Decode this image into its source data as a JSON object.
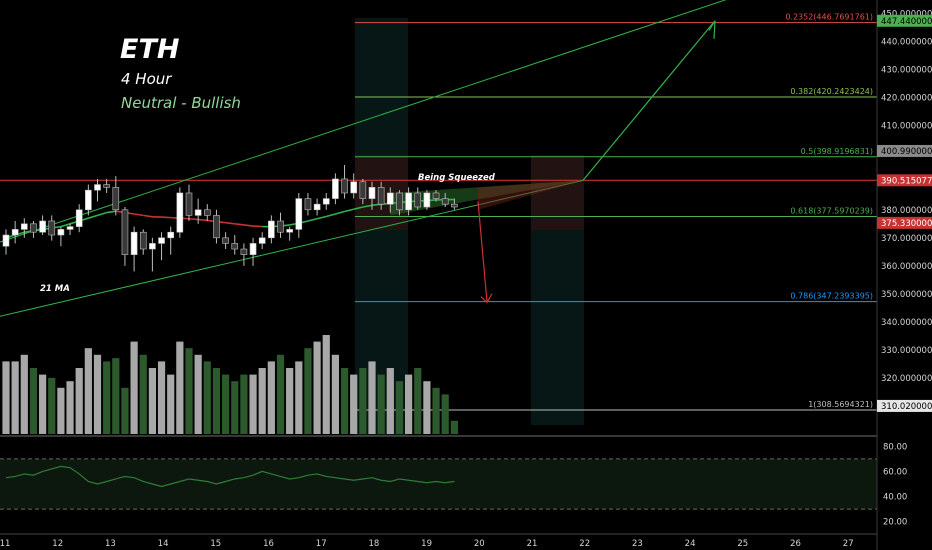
{
  "header": {
    "title": "ETH",
    "timeframe": "4 Hour",
    "bias": "Neutral - Bullish"
  },
  "annotations": {
    "ma_label": "21 MA",
    "squeeze_label": "Being Squeezed"
  },
  "colors": {
    "background": "#000000",
    "bull_candle": "#ffffff",
    "bear_candle": "#3a3a3a",
    "volume_bull": "#a8a8a8",
    "volume_bear": "#2d5a2d",
    "trendline": "#2fb34a",
    "ma_bull": "#2fb34a",
    "ma_bear": "#c83232",
    "resistance": "#c83232",
    "target_arrow": "#2fb34a",
    "drop_arrow": "#c83232"
  },
  "chart_data": {
    "type": "candlestick",
    "x_ticks": [
      "11",
      "12",
      "13",
      "14",
      "15",
      "16",
      "17",
      "18",
      "19",
      "20",
      "21",
      "22",
      "23",
      "24",
      "25",
      "26",
      "27"
    ],
    "price_axis": {
      "ticks": [
        "310.0000000",
        "320.0000000",
        "330.0000000",
        "340.0000000",
        "350.0000000",
        "360.0000000",
        "370.0000000",
        "380.0000000",
        "390.0000000",
        "400.0000000",
        "410.0000000",
        "420.0000000",
        "430.0000000",
        "440.0000000",
        "450.0000000"
      ],
      "tick_values": [
        310,
        320,
        330,
        340,
        350,
        360,
        370,
        380,
        390,
        400,
        410,
        420,
        430,
        440,
        450
      ],
      "ylim": [
        300,
        452
      ]
    },
    "price_tags": [
      {
        "label": "447.4400000",
        "value": 447.44,
        "bg": "#4caf50",
        "fg": "#000000"
      },
      {
        "label": "400.9900000",
        "value": 400.99,
        "bg": "#8a8a8a",
        "fg": "#000000"
      },
      {
        "label": "390.5150775",
        "value": 390.5150775,
        "bg": "#c83232",
        "fg": "#ffffff"
      },
      {
        "label": "375.3300000",
        "value": 375.33,
        "bg": "#c83232",
        "fg": "#ffffff"
      },
      {
        "label": "310.0200000",
        "value": 310.02,
        "bg": "#e6e6e6",
        "fg": "#000000"
      }
    ],
    "fib_levels": [
      {
        "label": "0.2352(446.7691761)",
        "value": 446.7691761,
        "color": "#e05050"
      },
      {
        "label": "0.382(420.2423424)",
        "value": 420.2423424,
        "color": "#8bc34a"
      },
      {
        "label": "0.5(398.9196831)",
        "value": 398.9196831,
        "color": "#4caf50"
      },
      {
        "label": "0.618(377.5970239)",
        "value": 377.5970239,
        "color": "#4caf50"
      },
      {
        "label": "0.786(347.2393395)",
        "value": 347.2393395,
        "color": "#2196f3"
      },
      {
        "label": "1(308.5694321)",
        "value": 308.5694321,
        "color": "#bdbdbd"
      }
    ],
    "resistance_level": 390.5150775,
    "candles": [
      {
        "o": 367,
        "h": 373,
        "l": 364,
        "c": 371
      },
      {
        "o": 371,
        "h": 376,
        "l": 368,
        "c": 373
      },
      {
        "o": 373,
        "h": 377,
        "l": 370,
        "c": 375
      },
      {
        "o": 375,
        "h": 376,
        "l": 370,
        "c": 372
      },
      {
        "o": 372,
        "h": 378,
        "l": 371,
        "c": 376
      },
      {
        "o": 376,
        "h": 378,
        "l": 369,
        "c": 371
      },
      {
        "o": 371,
        "h": 374,
        "l": 367,
        "c": 373
      },
      {
        "o": 373,
        "h": 375,
        "l": 371,
        "c": 374
      },
      {
        "o": 374,
        "h": 382,
        "l": 372,
        "c": 380
      },
      {
        "o": 380,
        "h": 389,
        "l": 378,
        "c": 387
      },
      {
        "o": 387,
        "h": 391,
        "l": 383,
        "c": 389
      },
      {
        "o": 389,
        "h": 391,
        "l": 386,
        "c": 388
      },
      {
        "o": 388,
        "h": 392,
        "l": 378,
        "c": 380
      },
      {
        "o": 380,
        "h": 381,
        "l": 360,
        "c": 364
      },
      {
        "o": 364,
        "h": 374,
        "l": 358,
        "c": 372
      },
      {
        "o": 372,
        "h": 373,
        "l": 364,
        "c": 366
      },
      {
        "o": 366,
        "h": 370,
        "l": 358,
        "c": 368
      },
      {
        "o": 368,
        "h": 372,
        "l": 362,
        "c": 370
      },
      {
        "o": 370,
        "h": 374,
        "l": 364,
        "c": 372
      },
      {
        "o": 372,
        "h": 388,
        "l": 370,
        "c": 386
      },
      {
        "o": 386,
        "h": 389,
        "l": 376,
        "c": 378
      },
      {
        "o": 378,
        "h": 384,
        "l": 375,
        "c": 380
      },
      {
        "o": 380,
        "h": 382,
        "l": 376,
        "c": 378
      },
      {
        "o": 378,
        "h": 380,
        "l": 368,
        "c": 370
      },
      {
        "o": 370,
        "h": 372,
        "l": 366,
        "c": 368
      },
      {
        "o": 368,
        "h": 371,
        "l": 364,
        "c": 366
      },
      {
        "o": 366,
        "h": 368,
        "l": 360,
        "c": 364
      },
      {
        "o": 364,
        "h": 370,
        "l": 360,
        "c": 368
      },
      {
        "o": 368,
        "h": 372,
        "l": 366,
        "c": 370
      },
      {
        "o": 370,
        "h": 378,
        "l": 368,
        "c": 376
      },
      {
        "o": 376,
        "h": 379,
        "l": 370,
        "c": 372
      },
      {
        "o": 372,
        "h": 374,
        "l": 369,
        "c": 373
      },
      {
        "o": 373,
        "h": 386,
        "l": 370,
        "c": 384
      },
      {
        "o": 384,
        "h": 386,
        "l": 378,
        "c": 380
      },
      {
        "o": 380,
        "h": 384,
        "l": 378,
        "c": 382
      },
      {
        "o": 382,
        "h": 386,
        "l": 380,
        "c": 384
      },
      {
        "o": 384,
        "h": 393,
        "l": 382,
        "c": 391
      },
      {
        "o": 391,
        "h": 396,
        "l": 384,
        "c": 386
      },
      {
        "o": 386,
        "h": 393,
        "l": 384,
        "c": 390
      },
      {
        "o": 390,
        "h": 391,
        "l": 382,
        "c": 384
      },
      {
        "o": 384,
        "h": 390,
        "l": 380,
        "c": 388
      },
      {
        "o": 388,
        "h": 390,
        "l": 380,
        "c": 382
      },
      {
        "o": 382,
        "h": 388,
        "l": 379,
        "c": 386
      },
      {
        "o": 386,
        "h": 387,
        "l": 378,
        "c": 380
      },
      {
        "o": 380,
        "h": 388,
        "l": 378,
        "c": 386
      },
      {
        "o": 386,
        "h": 388,
        "l": 380,
        "c": 381
      },
      {
        "o": 381,
        "h": 387,
        "l": 380,
        "c": 386
      },
      {
        "o": 386,
        "h": 387,
        "l": 383,
        "c": 384
      },
      {
        "o": 384,
        "h": 386,
        "l": 381,
        "c": 382
      },
      {
        "o": 382,
        "h": 384,
        "l": 380,
        "c": 381
      }
    ],
    "ma21": [
      370,
      371,
      372,
      372.5,
      373,
      373.5,
      374,
      375,
      376,
      377,
      378,
      379,
      379.5,
      379,
      378.5,
      378,
      377.5,
      377.4,
      377.2,
      377,
      376.8,
      376.5,
      376.2,
      375.8,
      375.4,
      375,
      374.6,
      374.2,
      374,
      374,
      374.2,
      374.6,
      375.2,
      376,
      376.8,
      377.6,
      378.5,
      379.4,
      380.2,
      381,
      381.6,
      382,
      382.3,
      382.6,
      382.9,
      383.1,
      383.3,
      383.5,
      383.6,
      383.7
    ],
    "volume": [
      22,
      22,
      24,
      20,
      18,
      17,
      14,
      16,
      20,
      26,
      24,
      22,
      23,
      14,
      28,
      24,
      20,
      22,
      18,
      28,
      26,
      24,
      22,
      20,
      18,
      16,
      18,
      18,
      20,
      22,
      24,
      20,
      22,
      26,
      28,
      30,
      24,
      20,
      18,
      20,
      22,
      18,
      20,
      16,
      18,
      20,
      16,
      14,
      12,
      4
    ],
    "rsi": [
      55,
      56,
      58,
      57,
      60,
      62,
      64,
      63,
      58,
      52,
      50,
      52,
      54,
      56,
      55,
      52,
      50,
      48,
      50,
      52,
      54,
      53,
      52,
      50,
      52,
      54,
      55,
      57,
      60,
      58,
      56,
      54,
      55,
      57,
      58,
      56,
      55,
      54,
      53,
      54,
      55,
      53,
      52,
      54,
      53,
      52,
      51,
      52,
      51,
      52
    ],
    "rsi_axis": {
      "ticks": [
        "20.00",
        "40.00",
        "60.00",
        "80.00"
      ],
      "tick_values": [
        20,
        40,
        60,
        80
      ],
      "ylim": [
        15,
        85
      ]
    }
  }
}
